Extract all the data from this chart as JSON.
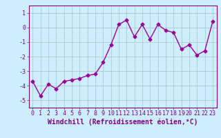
{
  "x": [
    0,
    1,
    2,
    3,
    4,
    5,
    6,
    7,
    8,
    9,
    10,
    11,
    12,
    13,
    14,
    15,
    16,
    17,
    18,
    19,
    20,
    21,
    22,
    23
  ],
  "y": [
    -3.7,
    -4.7,
    -3.9,
    -4.2,
    -3.7,
    -3.6,
    -3.5,
    -3.3,
    -3.2,
    -2.4,
    -1.2,
    0.2,
    0.5,
    -0.65,
    0.2,
    -0.8,
    0.2,
    -0.2,
    -0.35,
    -1.5,
    -1.2,
    -1.9,
    -1.6,
    0.4
  ],
  "line_color": "#990099",
  "marker": "D",
  "markersize": 2.5,
  "linewidth": 1.0,
  "bg_color": "#cceeff",
  "grid_color": "#aacccc",
  "xlabel": "Windchill (Refroidissement éolien,°C)",
  "xlabel_fontsize": 7,
  "ylim": [
    -5.5,
    1.5
  ],
  "xlim": [
    -0.5,
    23.5
  ],
  "yticks": [
    -5,
    -4,
    -3,
    -2,
    -1,
    0,
    1
  ],
  "ytick_labels": [
    "-5",
    "-4",
    "-3",
    "-2",
    "-1",
    "0",
    "1"
  ],
  "xticks": [
    0,
    1,
    2,
    3,
    4,
    5,
    6,
    7,
    8,
    9,
    10,
    11,
    12,
    13,
    14,
    15,
    16,
    17,
    18,
    19,
    20,
    21,
    22,
    23
  ],
  "tick_fontsize": 6,
  "spine_color": "#800080",
  "text_color": "#800080"
}
